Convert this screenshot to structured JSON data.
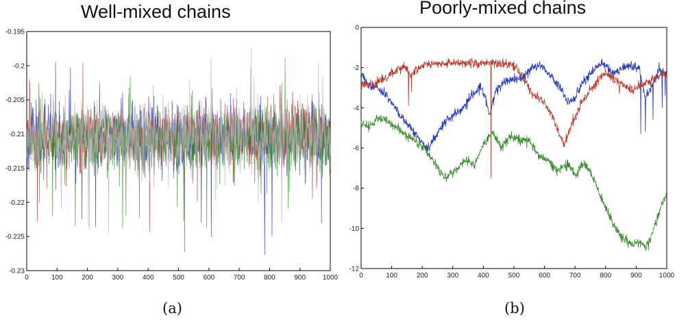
{
  "panels": {
    "a": {
      "title": "Well-mixed chains",
      "caption": "(a)"
    },
    "b": {
      "title": "Poorly-mixed chains",
      "caption": "(b)"
    }
  },
  "chart_data": [
    {
      "type": "line",
      "title": "Well-mixed chains",
      "xlabel": "",
      "ylabel": "",
      "xlim": [
        0,
        1000
      ],
      "ylim": [
        -0.23,
        -0.195
      ],
      "xticks": [
        0,
        100,
        200,
        300,
        400,
        500,
        600,
        700,
        800,
        900,
        1000
      ],
      "yticks": [
        -0.195,
        -0.2,
        -0.205,
        -0.21,
        -0.215,
        -0.22,
        -0.225,
        -0.23
      ],
      "grid": false,
      "series": [
        {
          "color": "#2233bb",
          "mean": -0.2105,
          "spread": 0.0022,
          "spikes": [
            {
              "x": 95,
              "y": -0.1995
            },
            {
              "x": 575,
              "y": -0.223
            },
            {
              "x": 140,
              "y": -0.2035
            }
          ]
        },
        {
          "color": "#b03a2e",
          "mean": -0.2102,
          "spread": 0.0022,
          "spikes": [
            {
              "x": 35,
              "y": -0.2228
            },
            {
              "x": 185,
              "y": -0.1996
            },
            {
              "x": 405,
              "y": -0.2243
            },
            {
              "x": 520,
              "y": -0.2273
            },
            {
              "x": 525,
              "y": -0.2085
            }
          ]
        },
        {
          "color": "#3a8a2e",
          "mean": -0.2108,
          "spread": 0.0023,
          "spikes": [
            {
              "x": 40,
              "y": -0.2025
            },
            {
              "x": 85,
              "y": -0.222
            },
            {
              "x": 160,
              "y": -0.2235
            },
            {
              "x": 840,
              "y": -0.2025
            }
          ]
        },
        {
          "color": "#b0b0b0",
          "mean": -0.2106,
          "spread": 0.0024,
          "spikes": [
            {
              "x": 600,
              "y": -0.2062
            },
            {
              "x": 840,
              "y": -0.223
            }
          ]
        }
      ]
    },
    {
      "type": "line",
      "title": "Poorly-mixed chains",
      "xlabel": "",
      "ylabel": "",
      "xlim": [
        0,
        1000
      ],
      "ylim": [
        -12,
        0
      ],
      "xticks": [
        0,
        100,
        200,
        300,
        400,
        500,
        600,
        700,
        800,
        900,
        1000
      ],
      "yticks": [
        0,
        -2,
        -4,
        -6,
        -8,
        -10,
        -12
      ],
      "grid": false,
      "series": [
        {
          "color": "#2233bb",
          "keypoints": [
            [
              0,
              -2.2
            ],
            [
              20,
              -2.8
            ],
            [
              50,
              -3.0
            ],
            [
              80,
              -3.3
            ],
            [
              110,
              -4.0
            ],
            [
              140,
              -4.6
            ],
            [
              170,
              -5.2
            ],
            [
              200,
              -5.7
            ],
            [
              215,
              -6.1
            ],
            [
              240,
              -5.5
            ],
            [
              270,
              -4.8
            ],
            [
              300,
              -4.4
            ],
            [
              330,
              -4.1
            ],
            [
              360,
              -3.4
            ],
            [
              390,
              -3.0
            ],
            [
              410,
              -3.6
            ],
            [
              420,
              -4.4
            ],
            [
              440,
              -3.2
            ],
            [
              470,
              -2.7
            ],
            [
              500,
              -2.6
            ],
            [
              530,
              -2.5
            ],
            [
              560,
              -2.0
            ],
            [
              590,
              -1.9
            ],
            [
              620,
              -2.4
            ],
            [
              650,
              -3.0
            ],
            [
              680,
              -3.7
            ],
            [
              700,
              -3.5
            ],
            [
              730,
              -2.6
            ],
            [
              760,
              -2.2
            ],
            [
              790,
              -1.8
            ],
            [
              820,
              -2.3
            ],
            [
              850,
              -2.1
            ],
            [
              880,
              -1.9
            ],
            [
              910,
              -2.0
            ],
            [
              930,
              -3.5
            ],
            [
              950,
              -3.0
            ],
            [
              975,
              -2.0
            ],
            [
              1000,
              -2.4
            ]
          ],
          "spikes": [
            {
              "x": 915,
              "y": -5.3
            },
            {
              "x": 930,
              "y": -5.2
            },
            {
              "x": 955,
              "y": -4.6
            },
            {
              "x": 985,
              "y": -4.0
            },
            {
              "x": 995,
              "y": -3.4
            }
          ]
        },
        {
          "color": "#b03a2e",
          "keypoints": [
            [
              0,
              -2.8
            ],
            [
              40,
              -2.9
            ],
            [
              80,
              -2.5
            ],
            [
              110,
              -2.2
            ],
            [
              140,
              -1.9
            ],
            [
              160,
              -2.4
            ],
            [
              180,
              -2.1
            ],
            [
              210,
              -1.8
            ],
            [
              250,
              -1.8
            ],
            [
              300,
              -1.8
            ],
            [
              350,
              -1.8
            ],
            [
              400,
              -1.8
            ],
            [
              430,
              -1.8
            ],
            [
              470,
              -1.8
            ],
            [
              500,
              -1.9
            ],
            [
              530,
              -2.5
            ],
            [
              560,
              -3.3
            ],
            [
              590,
              -3.6
            ],
            [
              620,
              -4.2
            ],
            [
              650,
              -5.4
            ],
            [
              665,
              -5.8
            ],
            [
              690,
              -4.8
            ],
            [
              720,
              -3.8
            ],
            [
              760,
              -2.9
            ],
            [
              800,
              -2.2
            ],
            [
              840,
              -2.7
            ],
            [
              880,
              -3.1
            ],
            [
              920,
              -2.9
            ],
            [
              960,
              -2.5
            ],
            [
              1000,
              -2.3
            ]
          ],
          "spikes": [
            {
              "x": 155,
              "y": -3.9
            },
            {
              "x": 165,
              "y": -3.2
            },
            {
              "x": 425,
              "y": -7.5
            },
            {
              "x": 845,
              "y": -3.3
            }
          ]
        },
        {
          "color": "#3a8a2e",
          "keypoints": [
            [
              0,
              -4.8
            ],
            [
              30,
              -4.9
            ],
            [
              60,
              -4.5
            ],
            [
              90,
              -4.7
            ],
            [
              120,
              -5.0
            ],
            [
              150,
              -5.4
            ],
            [
              190,
              -5.8
            ],
            [
              230,
              -6.5
            ],
            [
              260,
              -7.2
            ],
            [
              280,
              -7.5
            ],
            [
              310,
              -7.0
            ],
            [
              340,
              -6.6
            ],
            [
              370,
              -6.8
            ],
            [
              400,
              -5.8
            ],
            [
              430,
              -5.2
            ],
            [
              460,
              -6.0
            ],
            [
              490,
              -5.4
            ],
            [
              520,
              -5.6
            ],
            [
              550,
              -5.6
            ],
            [
              580,
              -6.4
            ],
            [
              610,
              -6.6
            ],
            [
              640,
              -7.1
            ],
            [
              680,
              -6.8
            ],
            [
              700,
              -7.4
            ],
            [
              730,
              -6.7
            ],
            [
              760,
              -7.5
            ],
            [
              790,
              -8.6
            ],
            [
              820,
              -9.6
            ],
            [
              850,
              -10.4
            ],
            [
              880,
              -10.8
            ],
            [
              910,
              -10.7
            ],
            [
              935,
              -10.9
            ],
            [
              950,
              -10.3
            ],
            [
              970,
              -9.5
            ],
            [
              985,
              -8.7
            ],
            [
              1000,
              -8.2
            ]
          ],
          "spikes": [
            {
              "x": 940,
              "y": -11.1
            }
          ]
        }
      ]
    }
  ]
}
